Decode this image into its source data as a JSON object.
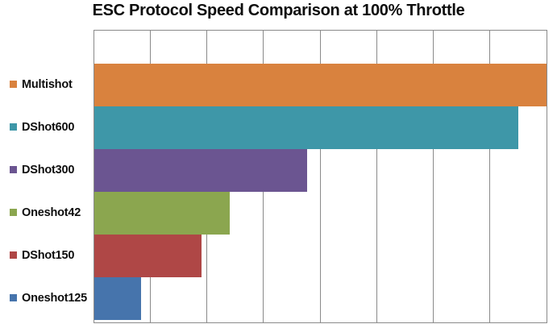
{
  "title": "ESC Protocol Speed Comparison at 100% Throttle",
  "chart_data": {
    "type": "bar",
    "orientation": "horizontal",
    "title": "ESC Protocol Speed Comparison at 100% Throttle",
    "categories": [
      "Multishot",
      "DShot600",
      "DShot300",
      "Oneshot42",
      "DShot150",
      "Oneshot125"
    ],
    "values": [
      8.0,
      7.5,
      3.77,
      2.4,
      1.9,
      0.83
    ],
    "value_unit": "x-axis grid divisions (numeric tick labels cropped out of view)",
    "xlim": [
      0,
      8
    ],
    "xlabel": "",
    "ylabel": "",
    "grid": "vertical gridlines at each of 8 equal divisions",
    "legend_position": "category labels with color swatches at left of each bar",
    "bar_colors": [
      "#D9823E",
      "#3E97A8",
      "#6B5591",
      "#8BA64F",
      "#AF4746",
      "#4674AC"
    ]
  },
  "styles": {
    "grid_color": "#8A8A8A",
    "background_color": "#FFFFFF",
    "title_color": "#0D0D0D",
    "label_color": "#0D0D0D"
  }
}
